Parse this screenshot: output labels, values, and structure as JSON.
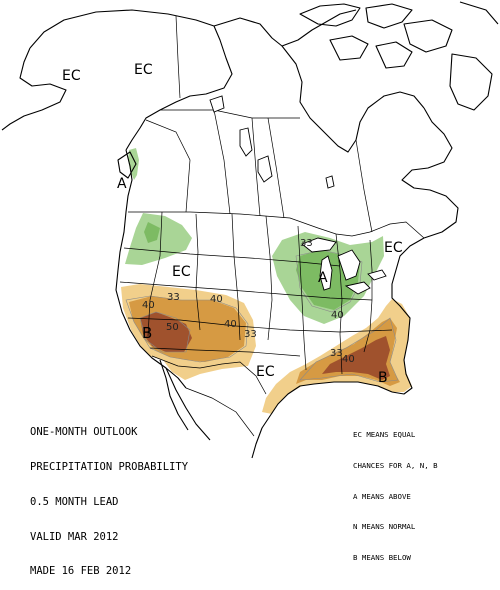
{
  "map_labels": {
    "ec_alaska_1": "EC",
    "ec_alaska_2": "EC",
    "a_pacific_nw": "A",
    "ec_west_central": "EC",
    "a_great_lakes": "A",
    "ec_northeast": "EC",
    "b_southwest": "B",
    "b_southeast": "B",
    "ec_gulf": "EC"
  },
  "contour_labels": {
    "sw_33_a": "33",
    "sw_40_a": "40",
    "sw_40_b": "40",
    "sw_50": "50",
    "sw_40_c": "40",
    "sw_33_b": "33",
    "gl_40": "40",
    "gl_33": "33",
    "se_33": "33",
    "se_40": "40"
  },
  "title_lines": [
    "ONE-MONTH OUTLOOK",
    "PRECIPITATION PROBABILITY",
    "0.5 MONTH LEAD",
    "VALID MAR 2012",
    "MADE 16 FEB 2012"
  ],
  "legend_lines": [
    "EC MEANS EQUAL",
    "CHANCES FOR A, N, B",
    "A MEANS ABOVE",
    "N MEANS NORMAL",
    "B MEANS BELOW"
  ],
  "colors": {
    "above_33": "#a9d596",
    "above_40": "#7dbb63",
    "above_50": "#3f8f3c",
    "below_33": "#f1cf8b",
    "below_40": "#d69a43",
    "below_50": "#a0522d"
  }
}
